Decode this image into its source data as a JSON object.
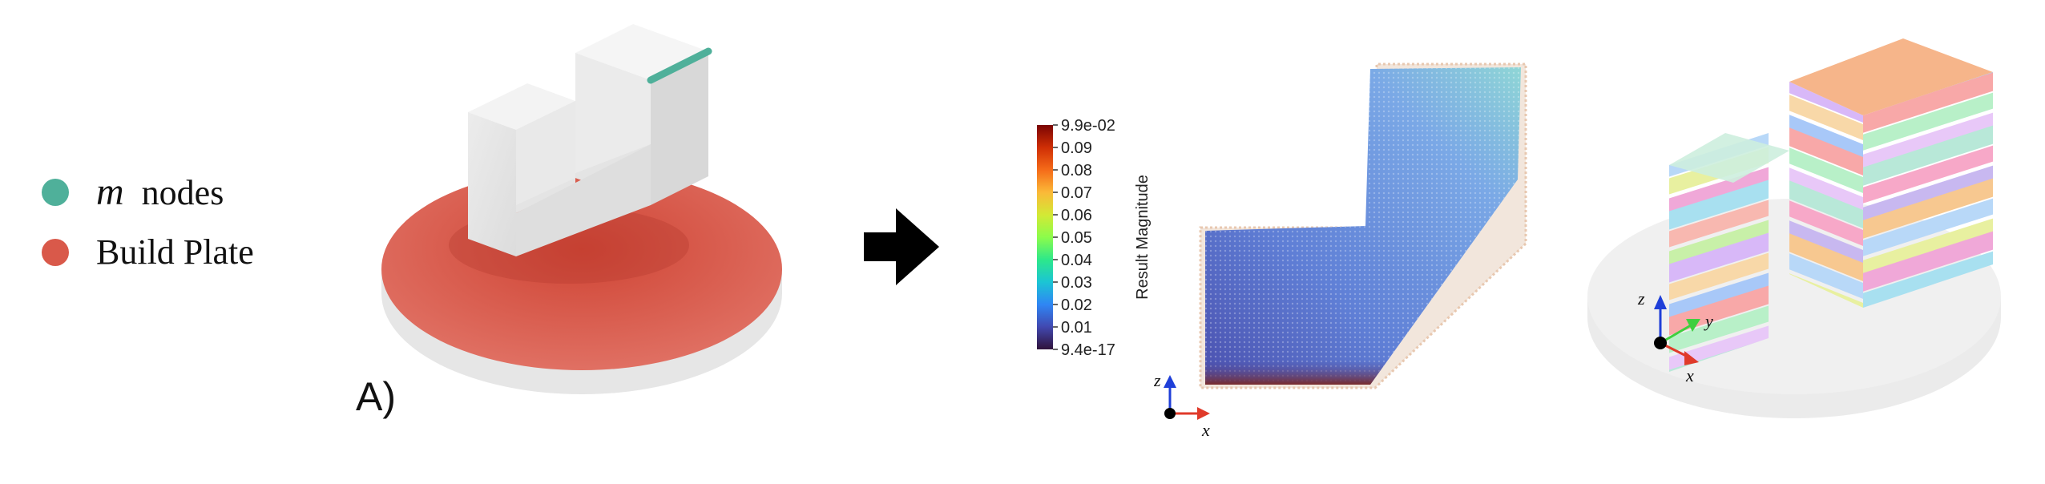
{
  "legend": {
    "items": [
      {
        "symbol": "m",
        "label": "nodes",
        "color": "#4fb09a"
      },
      {
        "label": "Build Plate",
        "color": "#d9594a"
      }
    ]
  },
  "panel_label": "A)",
  "colorbar": {
    "title": "Result Magnitude",
    "max_label": "9.9e-02",
    "min_label": "9.4e-17",
    "ticks": [
      "0.09",
      "0.08",
      "0.07",
      "0.06",
      "0.05",
      "0.04",
      "0.03",
      "0.02",
      "0.01"
    ],
    "colormap": "turbo"
  },
  "axes_middle": {
    "z": "z",
    "x": "x"
  },
  "axes_right": {
    "z": "z",
    "y": "y",
    "x": "x"
  },
  "colors": {
    "nodes": "#4fb09a",
    "build_plate": "#d9594a",
    "axis_x": "#e03a2a",
    "axis_y": "#3fcf3f",
    "axis_z": "#1f3fd8",
    "arrow": "#000000"
  }
}
